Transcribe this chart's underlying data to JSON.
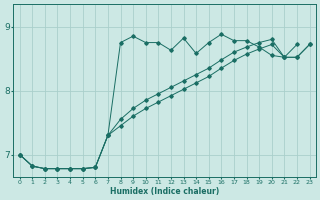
{
  "xlabel": "Humidex (Indice chaleur)",
  "bg_color": "#cce8e4",
  "grid_color": "#aacfcb",
  "line_color": "#1a6e64",
  "xlim": [
    -0.5,
    23.5
  ],
  "ylim": [
    6.65,
    9.35
  ],
  "yticks": [
    7,
    8,
    9
  ],
  "xticks": [
    0,
    1,
    2,
    3,
    4,
    5,
    6,
    7,
    8,
    9,
    10,
    11,
    12,
    13,
    14,
    15,
    16,
    17,
    18,
    19,
    20,
    21,
    22,
    23
  ],
  "line1_x": [
    0,
    1,
    2,
    3,
    4,
    5,
    6,
    7,
    8,
    9,
    10,
    11,
    12,
    13,
    14,
    15,
    16,
    17,
    18,
    19,
    20,
    21,
    22,
    23
  ],
  "line1_y": [
    7.0,
    6.82,
    6.78,
    6.78,
    6.78,
    6.78,
    6.8,
    7.3,
    8.75,
    8.85,
    8.75,
    8.75,
    8.63,
    8.82,
    8.58,
    8.75,
    8.88,
    8.78,
    8.78,
    8.68,
    8.55,
    8.52,
    8.72,
    null
  ],
  "line2_x": [
    0,
    1,
    2,
    3,
    4,
    5,
    6,
    7,
    8,
    9,
    10,
    11,
    12,
    13,
    14,
    15,
    16,
    17,
    18,
    19,
    20,
    21,
    22,
    23
  ],
  "line2_y": [
    7.0,
    6.82,
    6.78,
    6.78,
    6.78,
    6.78,
    6.8,
    7.3,
    7.55,
    7.72,
    7.85,
    7.95,
    8.05,
    8.15,
    8.25,
    8.35,
    8.48,
    8.6,
    8.68,
    8.75,
    8.8,
    8.52,
    8.52,
    8.72
  ],
  "line3_x": [
    0,
    1,
    2,
    3,
    4,
    5,
    6,
    7,
    8,
    9,
    10,
    11,
    12,
    13,
    14,
    15,
    16,
    17,
    18,
    19,
    20,
    21,
    22,
    23
  ],
  "line3_y": [
    7.0,
    6.82,
    6.78,
    6.78,
    6.78,
    6.78,
    6.8,
    7.3,
    7.45,
    7.6,
    7.72,
    7.82,
    7.92,
    8.02,
    8.12,
    8.22,
    8.35,
    8.47,
    8.57,
    8.65,
    8.72,
    8.52,
    8.52,
    8.72
  ]
}
